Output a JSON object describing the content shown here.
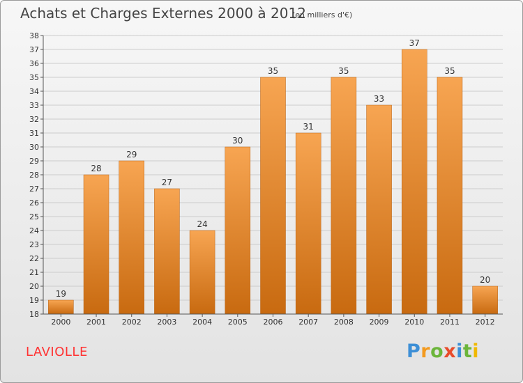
{
  "header": {
    "title": "Achats et Charges Externes 2000 à 2012",
    "subtitle": "(en milliers d'€)"
  },
  "footer": {
    "commune": "LAVIOLLE",
    "brand": {
      "letters": [
        "P",
        "r",
        "o",
        "x",
        "i",
        "t",
        "i"
      ],
      "colors": [
        "#3d8fd6",
        "#f39a1e",
        "#6bb53a",
        "#e84b2a",
        "#3d8fd6",
        "#6bb53a",
        "#f0b800"
      ]
    }
  },
  "colors": {
    "bar_light": "#f7a552",
    "bar_dark": "#c86a10",
    "grid": "#cccccc",
    "axis": "#555555",
    "text": "#333333"
  },
  "chart_data": {
    "type": "bar",
    "title": "Achats et Charges Externes 2000 à 2012",
    "subtitle": "(en milliers d'€)",
    "xlabel": "",
    "ylabel": "",
    "ylim": [
      18,
      38
    ],
    "yticks": [
      18,
      19,
      20,
      21,
      22,
      23,
      24,
      25,
      26,
      27,
      28,
      29,
      30,
      31,
      32,
      33,
      34,
      35,
      36,
      37,
      38
    ],
    "categories": [
      "2000",
      "2001",
      "2002",
      "2003",
      "2004",
      "2005",
      "2006",
      "2007",
      "2008",
      "2009",
      "2010",
      "2011",
      "2012"
    ],
    "values": [
      19,
      28,
      29,
      27,
      24,
      30,
      35,
      31,
      35,
      33,
      37,
      35,
      20
    ],
    "grid": true,
    "legend": "none"
  }
}
